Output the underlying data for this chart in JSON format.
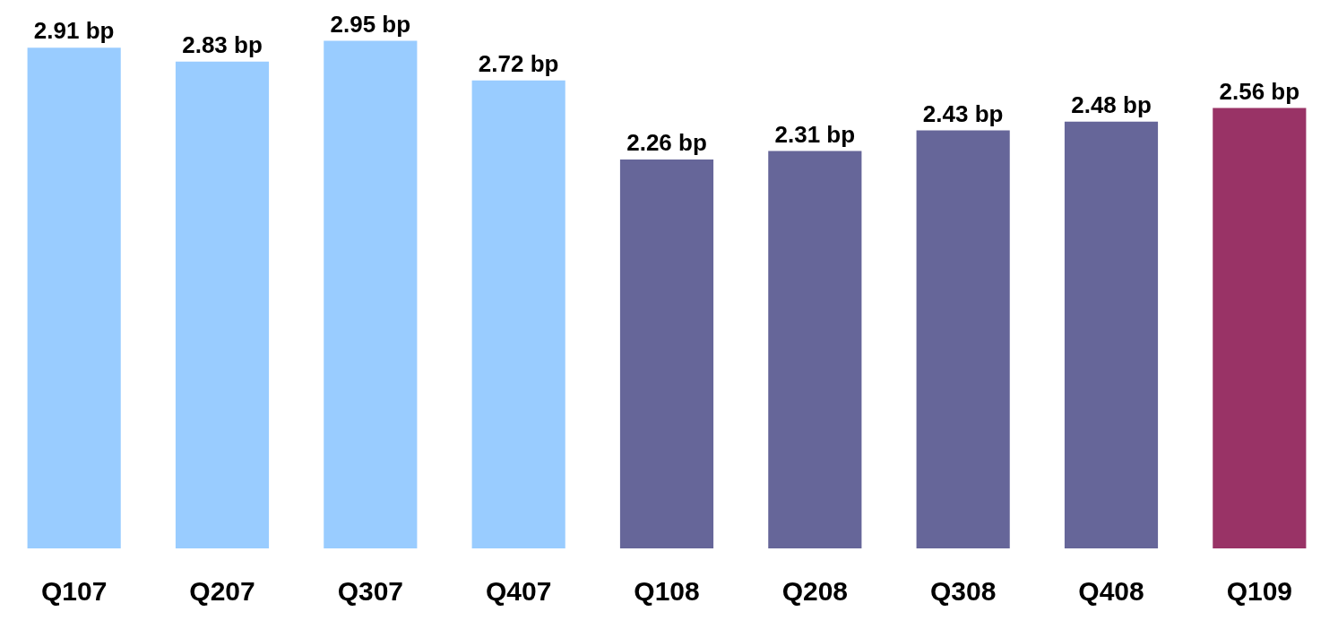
{
  "chart_data": {
    "type": "bar",
    "categories": [
      "Q107",
      "Q207",
      "Q307",
      "Q407",
      "Q108",
      "Q208",
      "Q308",
      "Q408",
      "Q109"
    ],
    "values": [
      2.91,
      2.83,
      2.95,
      2.72,
      2.26,
      2.31,
      2.43,
      2.48,
      2.56
    ],
    "colors": [
      "#99ccff",
      "#99ccff",
      "#99ccff",
      "#99ccff",
      "#666699",
      "#666699",
      "#666699",
      "#666699",
      "#993366"
    ],
    "value_labels": [
      "2.91 bp",
      "2.83 bp",
      "2.95 bp",
      "2.72 bp",
      "2.26 bp",
      "2.31 bp",
      "2.43 bp",
      "2.48 bp",
      "2.56 bp"
    ],
    "grid": false,
    "legend": false
  }
}
